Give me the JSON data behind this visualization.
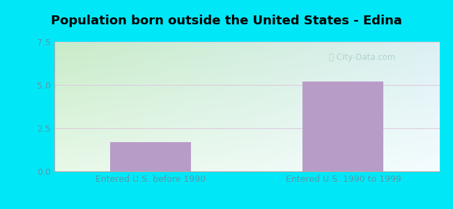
{
  "title": "Population born outside the United States - Edina",
  "categories": [
    "Entered U.S. before 1990",
    "Entered U.S. 1990 to 1999"
  ],
  "values": [
    1.7,
    5.2
  ],
  "bar_color": "#b89cc8",
  "ylim": [
    0,
    7.5
  ],
  "yticks": [
    0,
    2.5,
    5,
    7.5
  ],
  "background_cyan": "#00e8f8",
  "grid_color": "#ddccdd",
  "title_fontsize": 13,
  "tick_label_color": "#5599aa",
  "tick_fontsize": 9,
  "xlabel_fontsize": 9,
  "watermark_color": "#aacccc",
  "bg_grad_topleft": "#e8f8e8",
  "bg_grad_topright": "#eef8ff",
  "bg_grad_bottomleft": "#cceecc",
  "bg_grad_bottomright": "#e8f4f8"
}
